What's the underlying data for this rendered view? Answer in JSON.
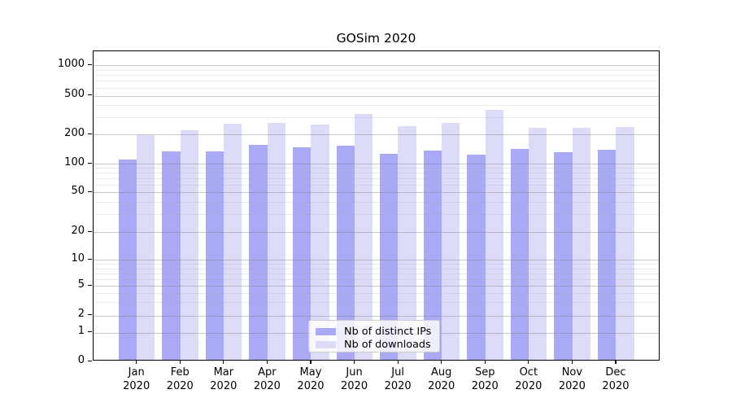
{
  "title": "GOSim 2020",
  "legend": {
    "items": [
      {
        "label": "Nb of distinct IPs",
        "color": "#a9a9f5"
      },
      {
        "label": "Nb of downloads",
        "color": "#dcdcf9"
      }
    ]
  },
  "chart_data": {
    "type": "bar",
    "title": "GOSim 2020",
    "categories": [
      "Jan",
      "Feb",
      "Mar",
      "Apr",
      "May",
      "Jun",
      "Jul",
      "Aug",
      "Sep",
      "Oct",
      "Nov",
      "Dec"
    ],
    "category_year": "2020",
    "series": [
      {
        "name": "Nb of distinct IPs",
        "color": "#a9a9f5",
        "values": [
          107,
          129,
          129,
          150,
          142,
          147,
          121,
          132,
          119,
          135,
          127,
          133
        ]
      },
      {
        "name": "Nb of downloads",
        "color": "#dcdcf9",
        "values": [
          190,
          212,
          248,
          250,
          242,
          311,
          235,
          250,
          343,
          223,
          223,
          229
        ]
      }
    ],
    "xlabel": "",
    "ylabel": "",
    "yscale": "log-like (pseudo-log with 0 baseline)",
    "yticks": [
      0,
      1,
      2,
      5,
      10,
      20,
      50,
      100,
      200,
      500,
      1000
    ],
    "ylim": [
      0,
      1500
    ],
    "grid": "major and minor horizontal gridlines drawn over bars",
    "legend_position": "lower center"
  }
}
